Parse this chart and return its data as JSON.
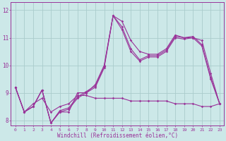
{
  "title": "",
  "xlabel": "Windchill (Refroidissement éolien,°C)",
  "ylabel": "",
  "bg_color": "#cce8e8",
  "grid_color": "#aacccc",
  "line_color": "#993399",
  "xlim": [
    -0.5,
    23.5
  ],
  "ylim": [
    7.8,
    12.3
  ],
  "yticks": [
    8,
    9,
    10,
    11,
    12
  ],
  "xticks": [
    0,
    1,
    2,
    3,
    4,
    5,
    6,
    7,
    8,
    9,
    10,
    11,
    12,
    13,
    14,
    15,
    16,
    17,
    18,
    19,
    20,
    21,
    22,
    23
  ],
  "series": [
    {
      "x": [
        0,
        1,
        2,
        3,
        4,
        5,
        6,
        7,
        8,
        9,
        10,
        11,
        12,
        13,
        14,
        15,
        16,
        17,
        18,
        19,
        20,
        21,
        22,
        23
      ],
      "y": [
        9.2,
        8.3,
        8.5,
        9.1,
        7.9,
        8.3,
        8.3,
        9.0,
        9.0,
        9.3,
        10.0,
        11.8,
        11.6,
        10.9,
        10.5,
        10.4,
        10.4,
        10.6,
        11.1,
        11.0,
        11.0,
        10.9,
        9.7,
        8.6
      ]
    },
    {
      "x": [
        0,
        1,
        2,
        3,
        4,
        5,
        6,
        7,
        8,
        9,
        10,
        11,
        12,
        13,
        14,
        15,
        16,
        17,
        18,
        19,
        20,
        21,
        22,
        23
      ],
      "y": [
        9.2,
        8.3,
        8.5,
        9.1,
        7.9,
        8.3,
        8.4,
        8.8,
        9.0,
        9.2,
        9.9,
        11.8,
        11.4,
        10.6,
        10.2,
        10.35,
        10.35,
        10.55,
        11.05,
        11.0,
        11.05,
        10.75,
        9.55,
        8.6
      ]
    },
    {
      "x": [
        0,
        1,
        2,
        3,
        4,
        5,
        6,
        7,
        8,
        9,
        10,
        11,
        12,
        13,
        14,
        15,
        16,
        17,
        18,
        19,
        20,
        21,
        22,
        23
      ],
      "y": [
        9.2,
        8.3,
        8.5,
        9.1,
        7.9,
        8.35,
        8.45,
        8.85,
        9.05,
        9.25,
        9.95,
        11.8,
        11.3,
        10.5,
        10.15,
        10.3,
        10.3,
        10.5,
        11.0,
        10.95,
        11.0,
        10.7,
        9.5,
        8.6
      ]
    },
    {
      "x": [
        0,
        1,
        2,
        3,
        4,
        5,
        6,
        7,
        8,
        9,
        10,
        11,
        12,
        13,
        14,
        15,
        16,
        17,
        18,
        19,
        20,
        21,
        22,
        23
      ],
      "y": [
        9.2,
        8.3,
        8.6,
        8.8,
        8.3,
        8.5,
        8.6,
        8.9,
        8.9,
        8.8,
        8.8,
        8.8,
        8.8,
        8.7,
        8.7,
        8.7,
        8.7,
        8.7,
        8.6,
        8.6,
        8.6,
        8.5,
        8.5,
        8.6
      ]
    }
  ]
}
